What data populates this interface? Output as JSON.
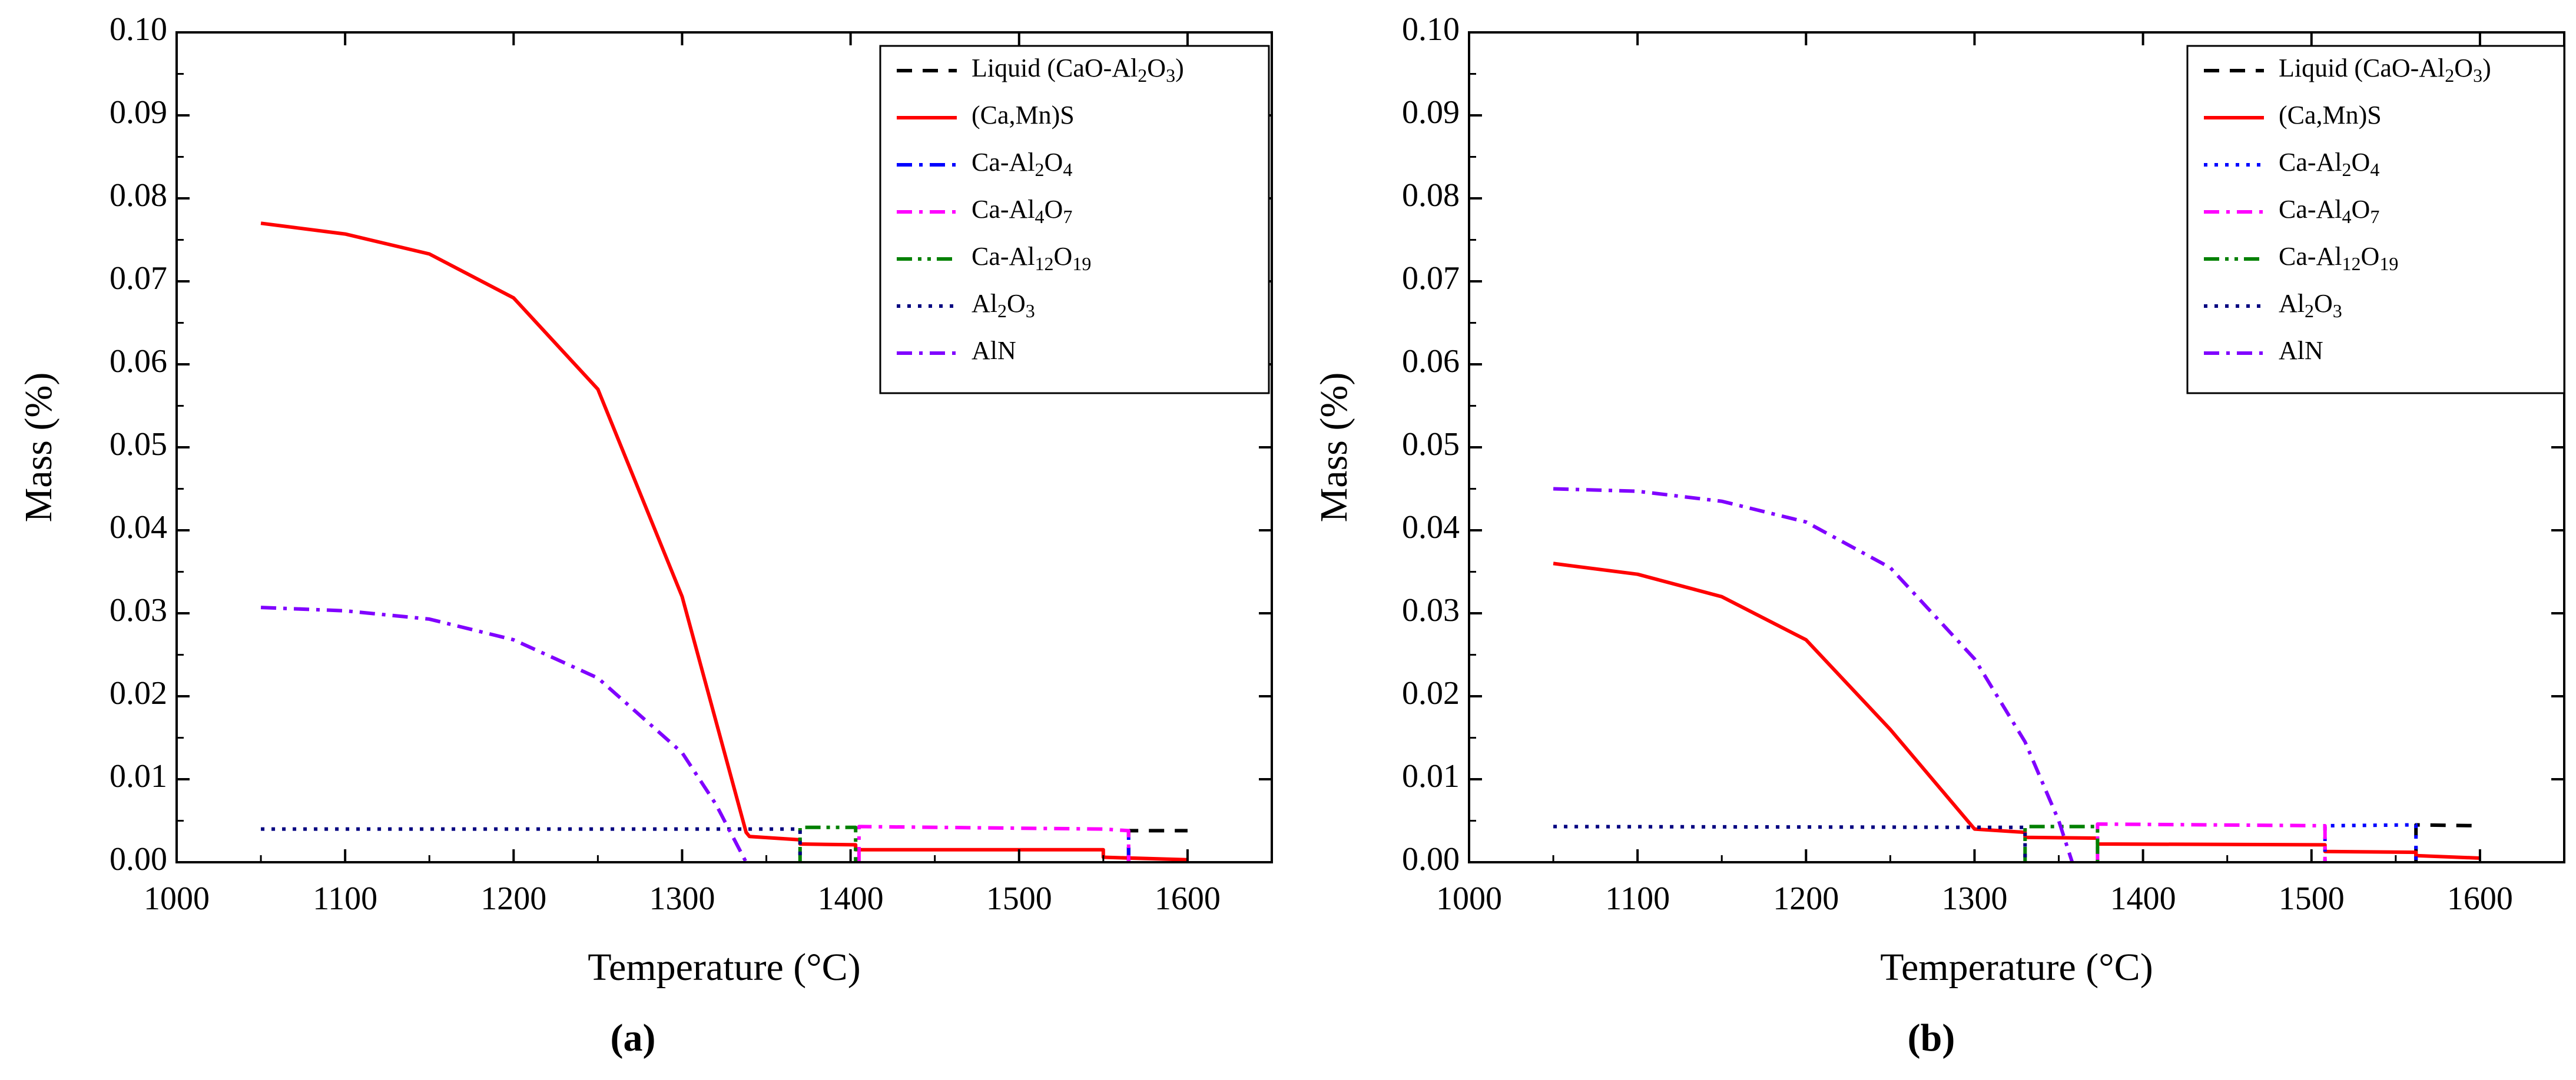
{
  "figure": {
    "caption_a": "(a)",
    "caption_b": "(b)"
  },
  "chart_data": [
    {
      "type": "line",
      "panel": "a",
      "title": "",
      "xlabel": "Temperature (°C)",
      "ylabel": "Mass (%)",
      "xlim": [
        1000,
        1650
      ],
      "ylim": [
        0,
        0.1
      ],
      "xticks": [
        1000,
        1100,
        1200,
        1300,
        1400,
        1500,
        1600
      ],
      "yticks": [
        0,
        0.01,
        0.02,
        0.03,
        0.04,
        0.05,
        0.06,
        0.07,
        0.08,
        0.09,
        0.1
      ],
      "ytick_labels": [
        "0.00",
        "0.01",
        "0.02",
        "0.03",
        "0.04",
        "0.05",
        "0.06",
        "0.07",
        "0.08",
        "0.09",
        "0.10"
      ],
      "legend_position": "top-right",
      "legend": [
        {
          "base": "Liquid (CaO-Al",
          "sub": "2",
          "after": "O",
          "sub2": "3",
          "tail": ")"
        },
        {
          "base": "(Ca,Mn)S"
        },
        {
          "base": "Ca-Al",
          "sub": "2",
          "after": "O",
          "sub2": "4"
        },
        {
          "base": "Ca-Al",
          "sub": "4",
          "after": "O",
          "sub2": "7"
        },
        {
          "base": "Ca-Al",
          "sub": "12",
          "after": "O",
          "sub2": "19"
        },
        {
          "base": "Al",
          "sub": "2",
          "after": "O",
          "sub2": "3"
        },
        {
          "base": "AlN"
        }
      ],
      "series": [
        {
          "name": "Liquid (CaO-Al2O3)",
          "color": "#000000",
          "dash": "dash",
          "x": [
            1565,
            1565,
            1600
          ],
          "y": [
            0,
            0.0038,
            0.0038
          ]
        },
        {
          "name": "(Ca,Mn)S",
          "color": "#ff0000",
          "dash": "solid",
          "x": [
            1050,
            1100,
            1150,
            1200,
            1250,
            1300,
            1338,
            1340,
            1370,
            1370,
            1403,
            1403,
            1550,
            1550,
            1600
          ],
          "y": [
            0.077,
            0.0757,
            0.0733,
            0.068,
            0.057,
            0.032,
            0.0036,
            0.0031,
            0.0027,
            0.0022,
            0.0021,
            0.0015,
            0.0015,
            0.0006,
            0.0003
          ]
        },
        {
          "name": "Ca-Al2O4",
          "color": "#0000ff",
          "dash": "dashdot",
          "x": [
            1565,
            1565
          ],
          "y": [
            0,
            0.0038
          ]
        },
        {
          "name": "Ca-Al4O7",
          "color": "#ff00ff",
          "dash": "dashdot",
          "x": [
            1405,
            1405,
            1550,
            1565,
            1565
          ],
          "y": [
            0,
            0.0043,
            0.004,
            0.0038,
            0
          ]
        },
        {
          "name": "Ca-Al12O19",
          "color": "#008000",
          "dash": "dashdotdot",
          "x": [
            1370,
            1370,
            1403,
            1403
          ],
          "y": [
            0,
            0.0042,
            0.0042,
            0
          ]
        },
        {
          "name": "Al2O3",
          "color": "#000080",
          "dash": "dot",
          "x": [
            1050,
            1370,
            1370
          ],
          "y": [
            0.004,
            0.004,
            0
          ]
        },
        {
          "name": "AlN",
          "color": "#8000ff",
          "dash": "dashdot",
          "x": [
            1050,
            1100,
            1150,
            1200,
            1250,
            1300,
            1320,
            1338
          ],
          "y": [
            0.0307,
            0.0303,
            0.0293,
            0.0268,
            0.0222,
            0.0132,
            0.007,
            0
          ]
        }
      ]
    },
    {
      "type": "line",
      "panel": "b",
      "title": "",
      "xlabel": "Temperature (°C)",
      "ylabel": "Mass (%)",
      "xlim": [
        1000,
        1650
      ],
      "ylim": [
        0,
        0.1
      ],
      "xticks": [
        1000,
        1100,
        1200,
        1300,
        1400,
        1500,
        1600
      ],
      "yticks": [
        0,
        0.01,
        0.02,
        0.03,
        0.04,
        0.05,
        0.06,
        0.07,
        0.08,
        0.09,
        0.1
      ],
      "ytick_labels": [
        "0.00",
        "0.01",
        "0.02",
        "0.03",
        "0.04",
        "0.05",
        "0.06",
        "0.07",
        "0.08",
        "0.09",
        "0.10"
      ],
      "legend_position": "top-right",
      "legend": [
        {
          "base": "Liquid (CaO-Al",
          "sub": "2",
          "after": "O",
          "sub2": "3",
          "tail": ")"
        },
        {
          "base": "(Ca,Mn)S"
        },
        {
          "base": "Ca-Al",
          "sub": "2",
          "after": "O",
          "sub2": "4"
        },
        {
          "base": "Ca-Al",
          "sub": "4",
          "after": "O",
          "sub2": "7"
        },
        {
          "base": "Ca-Al",
          "sub": "12",
          "after": "O",
          "sub2": "19"
        },
        {
          "base": "Al",
          "sub": "2",
          "after": "O",
          "sub2": "3"
        },
        {
          "base": "AlN"
        }
      ],
      "series": [
        {
          "name": "Liquid (CaO-Al2O3)",
          "color": "#000000",
          "dash": "dash",
          "x": [
            1562,
            1562,
            1600
          ],
          "y": [
            0,
            0.0045,
            0.0044
          ]
        },
        {
          "name": "(Ca,Mn)S",
          "color": "#ff0000",
          "dash": "solid",
          "x": [
            1050,
            1100,
            1150,
            1200,
            1250,
            1300,
            1330,
            1330,
            1373,
            1373,
            1508,
            1508,
            1562,
            1562,
            1600
          ],
          "y": [
            0.036,
            0.0347,
            0.032,
            0.0268,
            0.016,
            0.004,
            0.0036,
            0.003,
            0.0029,
            0.0022,
            0.0021,
            0.0013,
            0.0012,
            0.0008,
            0.0005
          ]
        },
        {
          "name": "Ca-Al2O4",
          "color": "#0000ff",
          "dash": "dot",
          "x": [
            1508,
            1508,
            1562,
            1562
          ],
          "y": [
            0,
            0.0044,
            0.0045,
            0
          ]
        },
        {
          "name": "Ca-Al4O7",
          "color": "#ff00ff",
          "dash": "dashdot",
          "x": [
            1373,
            1373,
            1508,
            1508
          ],
          "y": [
            0,
            0.0046,
            0.0044,
            0
          ]
        },
        {
          "name": "Ca-Al12O19",
          "color": "#008000",
          "dash": "dashdotdot",
          "x": [
            1330,
            1330,
            1373,
            1373
          ],
          "y": [
            0,
            0.0043,
            0.0043,
            0
          ]
        },
        {
          "name": "Al2O3",
          "color": "#000080",
          "dash": "dot",
          "x": [
            1050,
            1330,
            1330
          ],
          "y": [
            0.0043,
            0.0042,
            0
          ]
        },
        {
          "name": "AlN",
          "color": "#8000ff",
          "dash": "dashdot",
          "x": [
            1050,
            1100,
            1150,
            1200,
            1250,
            1300,
            1330,
            1350,
            1358
          ],
          "y": [
            0.045,
            0.0447,
            0.0435,
            0.041,
            0.0355,
            0.0245,
            0.0145,
            0.005,
            0
          ]
        }
      ]
    }
  ]
}
